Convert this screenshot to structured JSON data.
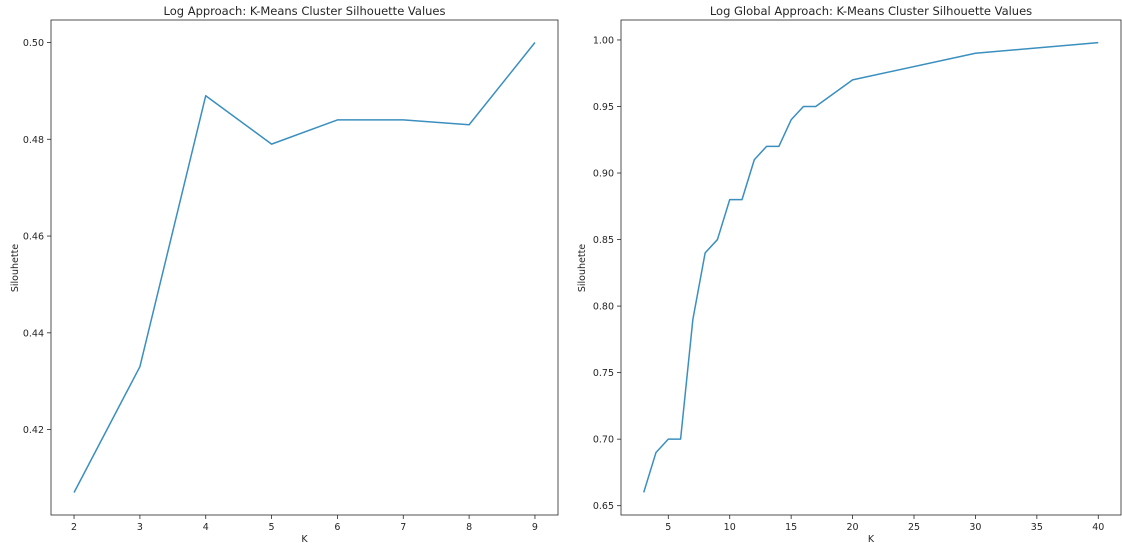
{
  "chart_data": [
    {
      "type": "line",
      "title": "Log Approach: K-Means Cluster Silhouette Values",
      "xlabel": "K",
      "ylabel": "Silouhette",
      "xlim": [
        1.65,
        9.35
      ],
      "ylim": [
        0.40235,
        0.50465
      ],
      "xticks": [
        2,
        3,
        4,
        5,
        6,
        7,
        8,
        9
      ],
      "yticks": [
        0.42,
        0.44,
        0.46,
        0.48,
        0.5
      ],
      "ytick_decimals": 2,
      "grid": false,
      "line_color": "#3a8fbf",
      "series": [
        {
          "x": [
            2,
            3,
            4,
            5,
            6,
            7,
            8,
            9
          ],
          "y": [
            0.407,
            0.433,
            0.489,
            0.479,
            0.484,
            0.484,
            0.483,
            0.5
          ]
        }
      ]
    },
    {
      "type": "line",
      "title": "Log Global Approach: K-Means Cluster Silhouette Values",
      "xlabel": "K",
      "ylabel": "Silouhette",
      "xlim": [
        1.15,
        41.85
      ],
      "ylim": [
        0.643,
        1.015
      ],
      "xticks": [
        5,
        10,
        15,
        20,
        25,
        30,
        35,
        40
      ],
      "yticks": [
        0.65,
        0.7,
        0.75,
        0.8,
        0.85,
        0.9,
        0.95,
        1.0
      ],
      "ytick_decimals": 2,
      "grid": false,
      "line_color": "#3a8fbf",
      "series": [
        {
          "x": [
            3,
            4,
            5,
            6,
            7,
            8,
            9,
            10,
            11,
            12,
            13,
            14,
            15,
            16,
            17,
            20,
            30,
            40
          ],
          "y": [
            0.66,
            0.69,
            0.7,
            0.7,
            0.79,
            0.84,
            0.85,
            0.88,
            0.88,
            0.91,
            0.92,
            0.92,
            0.94,
            0.95,
            0.95,
            0.97,
            0.99,
            0.998
          ]
        }
      ]
    }
  ]
}
